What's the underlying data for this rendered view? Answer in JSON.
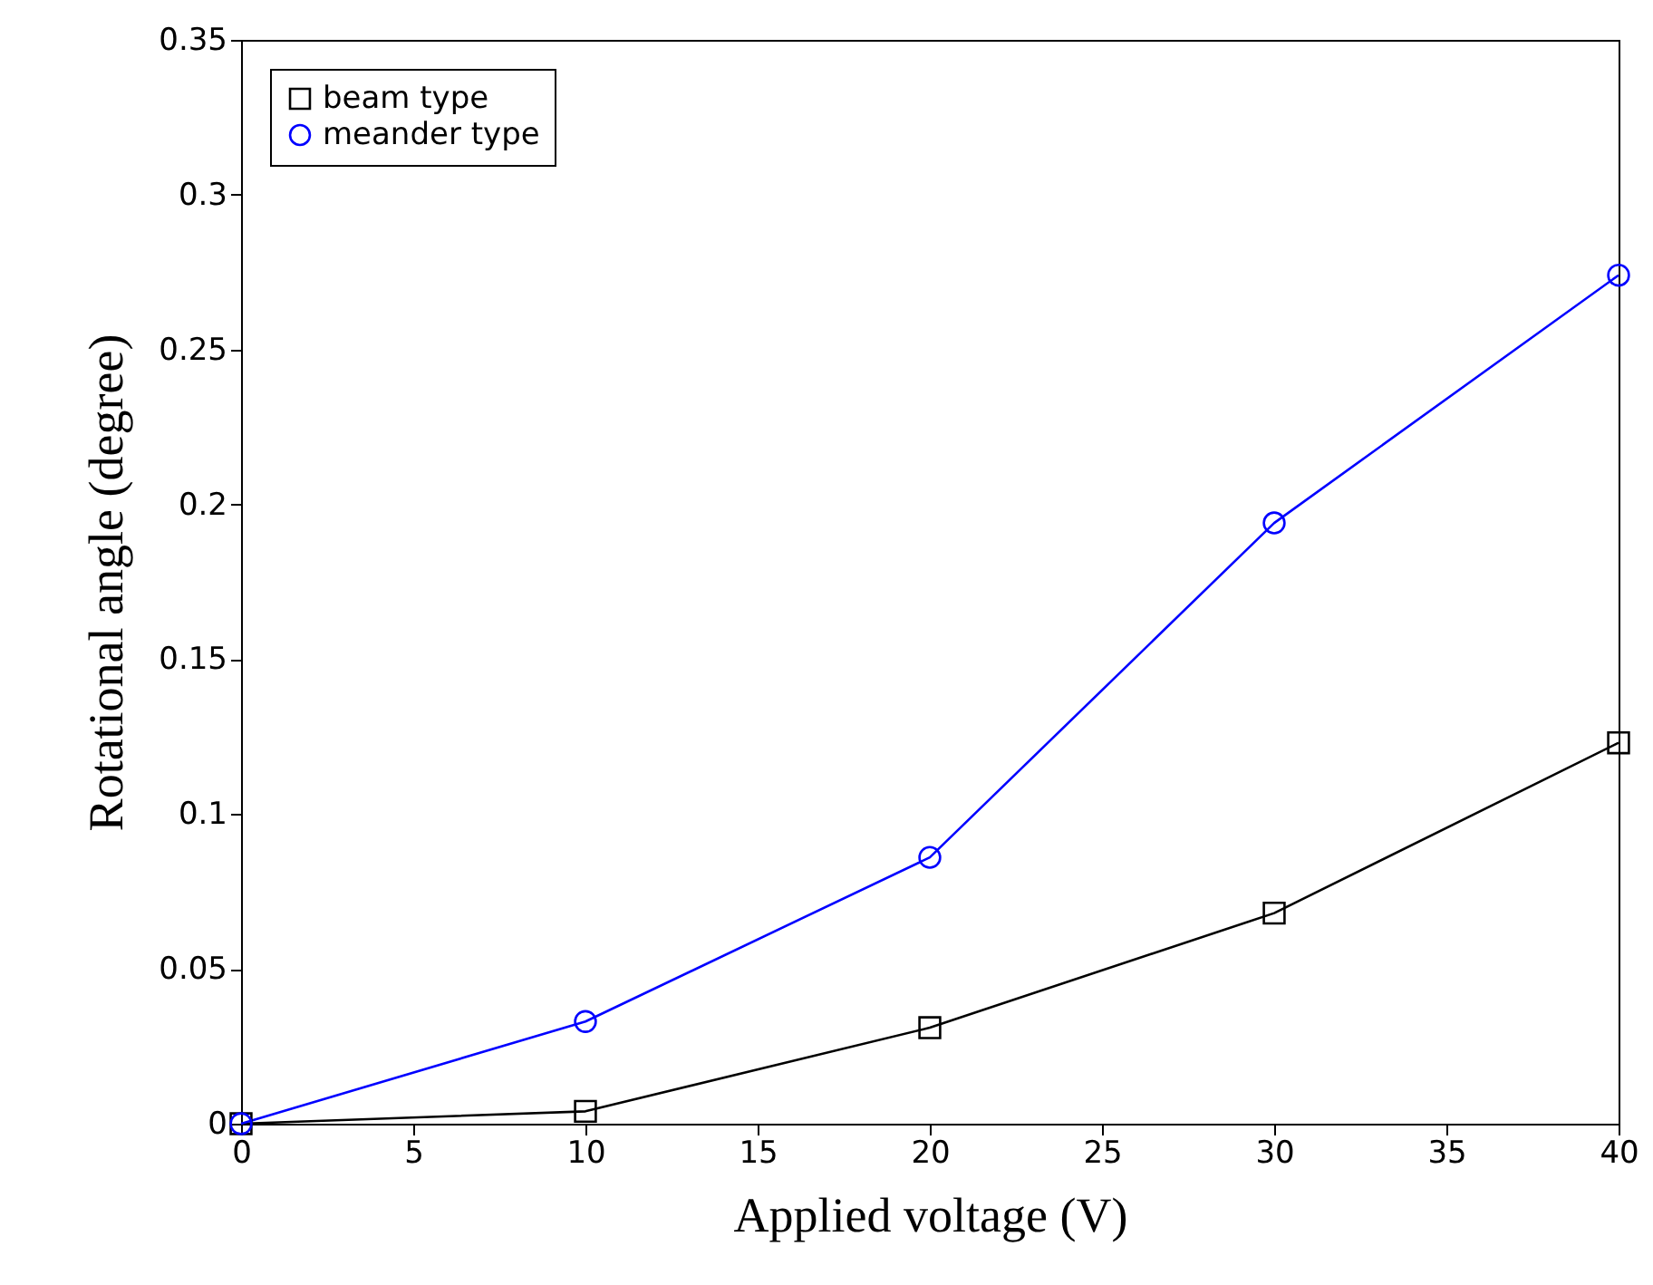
{
  "chart_data": {
    "type": "line",
    "xlabel": "Applied voltage (V)",
    "ylabel": "Rotational angle (degree)",
    "x": [
      0,
      10,
      20,
      30,
      40
    ],
    "series": [
      {
        "name": "beam type",
        "color": "#000000",
        "marker": "square",
        "values": [
          0,
          0.004,
          0.031,
          0.068,
          0.123
        ]
      },
      {
        "name": "meander type",
        "color": "#0000ff",
        "marker": "circle",
        "values": [
          0,
          0.033,
          0.086,
          0.194,
          0.274
        ]
      }
    ],
    "xlim": [
      0,
      40
    ],
    "xticks": [
      0,
      5,
      10,
      15,
      20,
      25,
      30,
      35,
      40
    ],
    "ylim": [
      0,
      0.35
    ],
    "yticks": [
      0,
      0.05,
      0.1,
      0.15,
      0.2,
      0.25,
      0.3,
      0.35
    ],
    "grid": false,
    "legend": "top left",
    "line_style": "solid"
  }
}
